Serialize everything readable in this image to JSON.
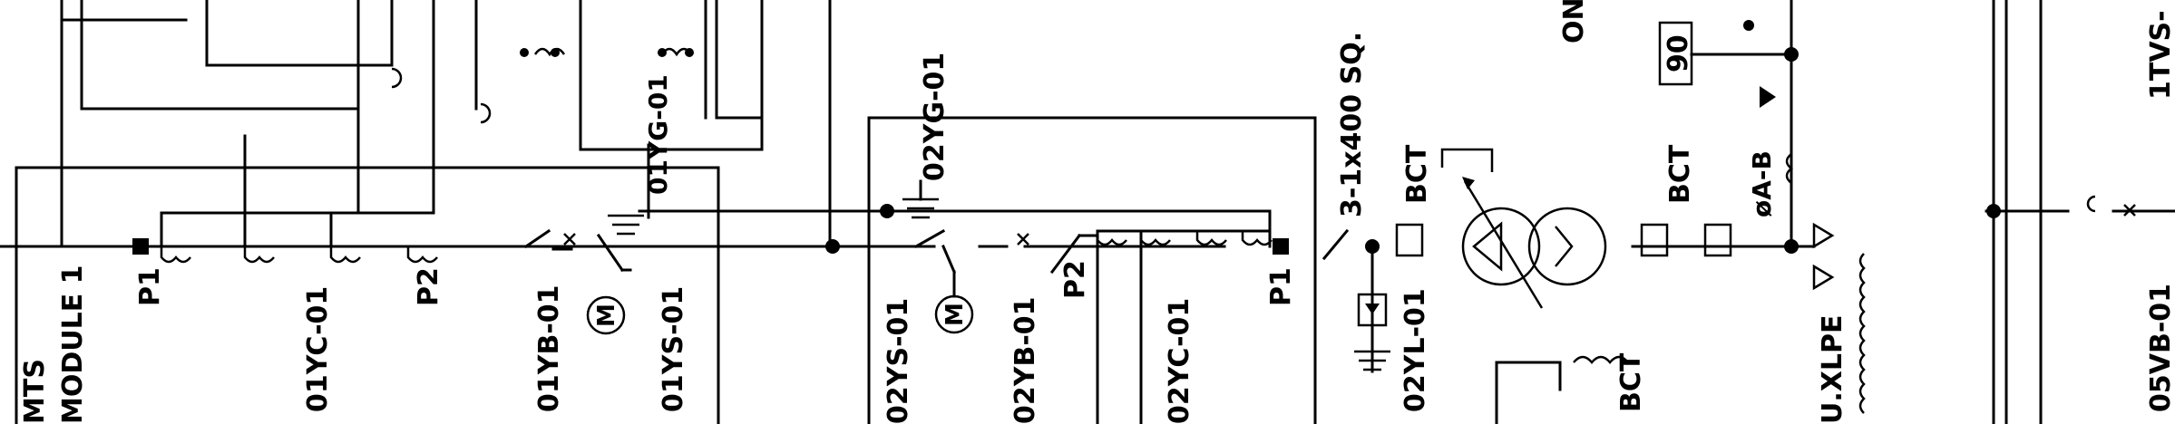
{
  "labels": {
    "module": [
      "MTS",
      "MODULE 1"
    ],
    "p1_left": "P1",
    "p2_left": "P2",
    "ct_01yc": "01YC-01",
    "brk_01yb": "01YB-01",
    "ds_01ys": "01YS-01",
    "gnd_01yg": "01YG-01",
    "gnd_02yg": "02YG-01",
    "ds_02ys": "02YS-01",
    "brk_02yb": "02YB-01",
    "p2_right": "P2",
    "ct_02yc": "02YC-01",
    "p1_right": "P1",
    "cable": "3-1x400 SQ.",
    "bct_1": "BCT",
    "la_02yl": "02YL-01",
    "bct_2": "BCT",
    "bct_3": "BCT",
    "relay_90": "90",
    "phase_ab": "øA-B",
    "on_text": "ON",
    "xlpe": "U.XLPE",
    "tvs": "1TVS-",
    "vb": "05VB-01"
  },
  "symbols": {
    "motor": "M"
  }
}
